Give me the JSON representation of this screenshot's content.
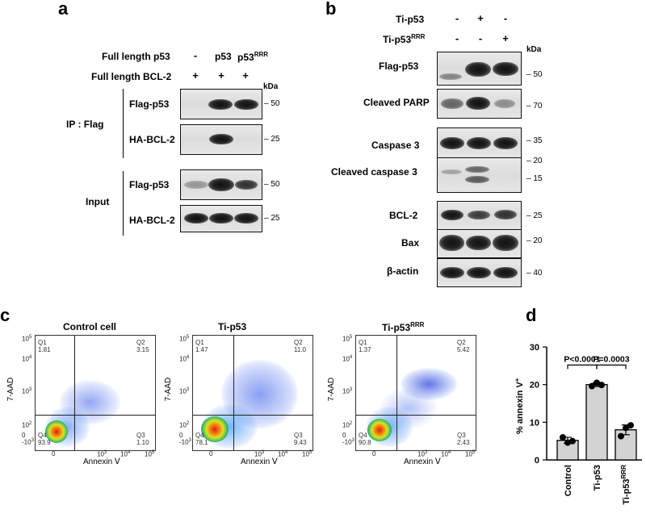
{
  "panel_a": {
    "letter": "a",
    "row1_label": "Full length p53",
    "row2_label": "Full length BCL-2",
    "col_signs_row1": [
      "-",
      "p53",
      "p53"
    ],
    "col_signs_row1_sup": "RRR",
    "col_signs_row2": [
      "+",
      "+",
      "+"
    ],
    "kda": "kDa",
    "ip_label": "IP : Flag",
    "input_label": "Input",
    "blots": [
      {
        "label": "Flag-p53",
        "marker": "– 50"
      },
      {
        "label": "HA-BCL-2",
        "marker": "– 25"
      },
      {
        "label": "Flag-p53",
        "marker": "– 50"
      },
      {
        "label": "HA-BCL-2",
        "marker": "– 25"
      }
    ]
  },
  "panel_b": {
    "letter": "b",
    "row1_label": "Ti-p53",
    "row2_label": "Ti-p53",
    "row2_sup": "RRR",
    "row1_signs": [
      "-",
      "+",
      "-"
    ],
    "row2_signs": [
      "-",
      "-",
      "+"
    ],
    "kda": "kDa",
    "blots": [
      {
        "label": "Flag-p53",
        "marker": "– 50"
      },
      {
        "label": "Cleaved PARP",
        "marker": "– 70"
      },
      {
        "label": "Caspase 3",
        "marker": "– 35"
      },
      {
        "label": "Cleaved caspase 3",
        "marker1": "– 20",
        "marker2": "– 15"
      },
      {
        "label": "BCL-2",
        "marker": "– 25"
      },
      {
        "label": "Bax",
        "marker": "– 20"
      },
      {
        "label": "β-actin",
        "marker": "– 40"
      }
    ]
  },
  "panel_c": {
    "letter": "c",
    "xlabel": "Annexin Ⅴ",
    "ylabel": "7-AAD",
    "plots": [
      {
        "title": "Control cell",
        "title_sup": "",
        "q1": "1.81",
        "q2": "3.15",
        "q3": "1.10",
        "q4": "93.9"
      },
      {
        "title": "Ti-p53",
        "title_sup": "",
        "q1": "1.47",
        "q2": "11.0",
        "q3": "9.43",
        "q4": "78.1"
      },
      {
        "title": "Ti-p53",
        "title_sup": "RRR",
        "q1": "1.37",
        "q2": "5.42",
        "q3": "2.43",
        "q4": "90.8"
      }
    ],
    "quad_names": [
      "Q1",
      "Q2",
      "Q3",
      "Q4"
    ],
    "y_ticks": [
      "10",
      "10",
      "10",
      "10",
      "0",
      "-10"
    ],
    "y_tick_sups": [
      "5",
      "4",
      "3",
      "2",
      "",
      "3"
    ],
    "x_ticks": [
      "0",
      "10",
      "10",
      "10"
    ],
    "x_tick_sups": [
      "",
      "3",
      "4",
      "5"
    ]
  },
  "panel_d": {
    "letter": "d",
    "chart_data": {
      "type": "bar",
      "categories": [
        "Control",
        "Ti-p53",
        "Ti-p53RRR"
      ],
      "values": [
        5.2,
        20.0,
        8.0
      ],
      "errors": [
        0.8,
        0.5,
        1.3
      ],
      "points": [
        [
          6.0,
          4.6,
          5.0
        ],
        [
          19.6,
          20.5,
          19.9
        ],
        [
          6.3,
          8.5,
          9.2
        ]
      ],
      "ylabel": "% annexin V",
      "ylabel_sup": "+",
      "ylim": [
        0,
        30
      ],
      "yticks": [
        0,
        10,
        20,
        30
      ],
      "annotations": [
        "P<0.0001",
        "P=0.0003"
      ],
      "cat3_base": "Ti-p53",
      "cat3_sup": "RRR"
    }
  }
}
